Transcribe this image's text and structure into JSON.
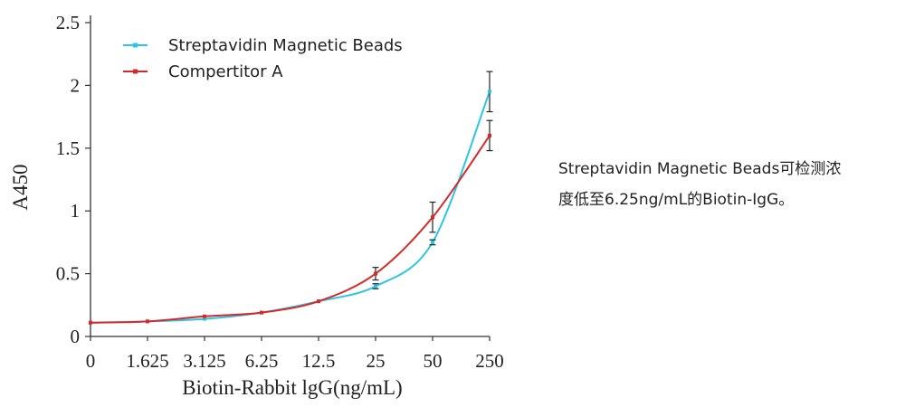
{
  "chart_data": {
    "type": "line",
    "xlabel": "Biotin-Rabbit lgG(ng/mL)",
    "ylabel": "A450",
    "categories": [
      "0",
      "1.625",
      "3.125",
      "6.25",
      "12.5",
      "25",
      "50",
      "250"
    ],
    "y_ticks": [
      "0",
      "0.5",
      "1",
      "1.5",
      "2",
      "2.5"
    ],
    "ylim": [
      0,
      2.5
    ],
    "legend_position": "top-left",
    "series": [
      {
        "name": "Streptavidin Magnetic Beads",
        "color": "#2ec4e6",
        "values": [
          0.11,
          0.12,
          0.14,
          0.19,
          0.28,
          0.4,
          0.75,
          1.95
        ],
        "errors": [
          0,
          0,
          0,
          0,
          0,
          0.02,
          0.02,
          0.16
        ]
      },
      {
        "name": "Compertitor A",
        "color": "#d42a2a",
        "values": [
          0.11,
          0.12,
          0.16,
          0.19,
          0.28,
          0.5,
          0.95,
          1.6
        ],
        "errors": [
          0,
          0,
          0,
          0,
          0,
          0.05,
          0.12,
          0.12
        ]
      }
    ]
  },
  "caption": {
    "line1": "Streptavidin Magnetic Beads可检测浓",
    "line2": "度低至6.25ng/mL的Biotin-IgG。"
  }
}
